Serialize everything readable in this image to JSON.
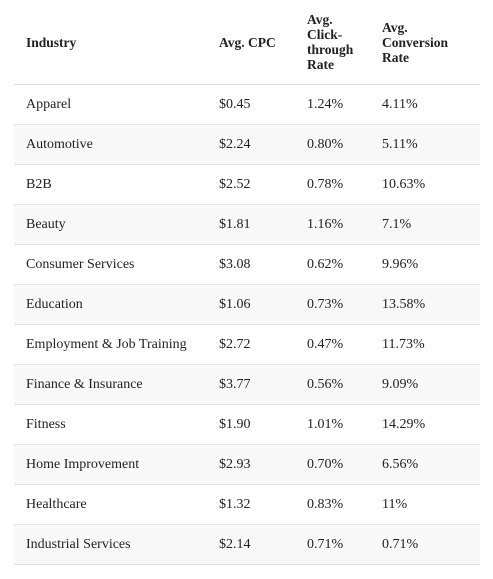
{
  "table": {
    "headers": {
      "industry": "Industry",
      "cpc": "Avg. CPC",
      "ctr": "Avg. Click-through Rate",
      "conversion": "Avg. Conversion Rate"
    },
    "rows": [
      {
        "industry": "Apparel",
        "cpc": "$0.45",
        "ctr": "1.24%",
        "conversion": "4.11%"
      },
      {
        "industry": "Automotive",
        "cpc": "$2.24",
        "ctr": "0.80%",
        "conversion": "5.11%"
      },
      {
        "industry": "B2B",
        "cpc": "$2.52",
        "ctr": "0.78%",
        "conversion": "10.63%"
      },
      {
        "industry": "Beauty",
        "cpc": "$1.81",
        "ctr": "1.16%",
        "conversion": "7.1%"
      },
      {
        "industry": "Consumer Services",
        "cpc": "$3.08",
        "ctr": "0.62%",
        "conversion": "9.96%"
      },
      {
        "industry": "Education",
        "cpc": "$1.06",
        "ctr": "0.73%",
        "conversion": "13.58%"
      },
      {
        "industry": "Employment & Job Training",
        "cpc": "$2.72",
        "ctr": "0.47%",
        "conversion": "11.73%"
      },
      {
        "industry": "Finance & Insurance",
        "cpc": "$3.77",
        "ctr": "0.56%",
        "conversion": "9.09%"
      },
      {
        "industry": "Fitness",
        "cpc": "$1.90",
        "ctr": "1.01%",
        "conversion": "14.29%"
      },
      {
        "industry": "Home Improvement",
        "cpc": "$2.93",
        "ctr": "0.70%",
        "conversion": "6.56%"
      },
      {
        "industry": "Healthcare",
        "cpc": "$1.32",
        "ctr": "0.83%",
        "conversion": "11%"
      },
      {
        "industry": "Industrial Services",
        "cpc": "$2.14",
        "ctr": "0.71%",
        "conversion": "0.71%"
      }
    ]
  }
}
